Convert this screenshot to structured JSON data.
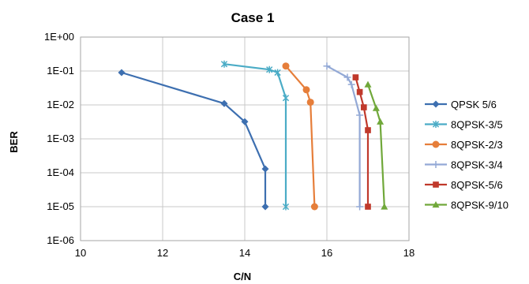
{
  "chart_data": {
    "type": "scatter",
    "title": "Case 1",
    "xlabel": "C/N",
    "ylabel": "BER",
    "xlim": [
      10,
      18
    ],
    "x_ticks": [
      "10",
      "12",
      "14",
      "16",
      "18"
    ],
    "ylim": [
      1e-06,
      1
    ],
    "y_scale": "log",
    "y_ticks": [
      "1E+00",
      "1E-01",
      "1E-02",
      "1E-03",
      "1E-04",
      "1E-05",
      "1E-06"
    ],
    "grid": true,
    "legend_position": "right",
    "series": [
      {
        "name": "QPSK 5/6",
        "color": "#3d6fb0",
        "marker": "diamond",
        "x": [
          11.0,
          13.5,
          14.0,
          14.5,
          14.5
        ],
        "y": [
          0.09,
          0.011,
          0.0032,
          0.00013,
          1e-05
        ]
      },
      {
        "name": "8QPSK-3/5",
        "color": "#4bacc6",
        "marker": "star",
        "x": [
          13.5,
          14.6,
          14.8,
          15.0,
          15.0
        ],
        "y": [
          0.16,
          0.11,
          0.09,
          0.016,
          1e-05
        ]
      },
      {
        "name": "8QPSK-2/3",
        "color": "#e67e3a",
        "marker": "circle",
        "x": [
          15.0,
          15.5,
          15.6,
          15.7
        ],
        "y": [
          0.14,
          0.028,
          0.012,
          1e-05
        ]
      },
      {
        "name": "8QPSK-3/4",
        "color": "#93a9d6",
        "marker": "plus",
        "x": [
          16.0,
          16.5,
          16.6,
          16.8,
          16.8
        ],
        "y": [
          0.14,
          0.065,
          0.04,
          0.005,
          1e-05
        ]
      },
      {
        "name": "8QPSK-5/6",
        "color": "#c0392b",
        "marker": "square",
        "x": [
          16.7,
          16.8,
          16.9,
          17.0,
          17.0
        ],
        "y": [
          0.065,
          0.024,
          0.0085,
          0.0018,
          1e-05
        ]
      },
      {
        "name": "8QPSK-9/10",
        "color": "#70a83a",
        "marker": "triangle",
        "x": [
          17.0,
          17.2,
          17.3,
          17.4
        ],
        "y": [
          0.04,
          0.008,
          0.0032,
          1e-05
        ]
      }
    ]
  }
}
